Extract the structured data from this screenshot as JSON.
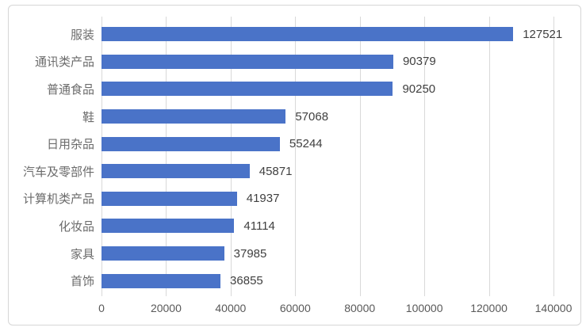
{
  "chart_data": {
    "type": "bar",
    "orientation": "horizontal",
    "title": "",
    "xlabel": "",
    "ylabel": "",
    "categories": [
      "服装",
      "通讯类产品",
      "普通食品",
      "鞋",
      "日用杂品",
      "汽车及零部件",
      "计算机类产品",
      "化妆品",
      "家具",
      "首饰"
    ],
    "values": [
      127521,
      90379,
      90250,
      57068,
      55244,
      45871,
      41937,
      41114,
      37985,
      36855
    ],
    "value_labels": [
      "127521",
      "90379",
      "90250",
      "57068",
      "55244",
      "45871",
      "41937",
      "41114",
      "37985",
      "36855"
    ],
    "xlim": [
      0,
      140000
    ],
    "x_ticks": [
      0,
      20000,
      40000,
      60000,
      80000,
      100000,
      120000,
      140000
    ],
    "x_tick_labels": [
      "0",
      "20000",
      "40000",
      "60000",
      "80000",
      "100000",
      "120000",
      "140000"
    ],
    "grid": true,
    "legend": false,
    "colors": {
      "bar": "#4a73c8",
      "gridline": "#d9d9d9",
      "category_label": "#6b6b6b",
      "value_label": "#3f3f3f",
      "tick_label": "#595959",
      "frame_border": "#d6d6d6",
      "background": "#ffffff"
    }
  }
}
